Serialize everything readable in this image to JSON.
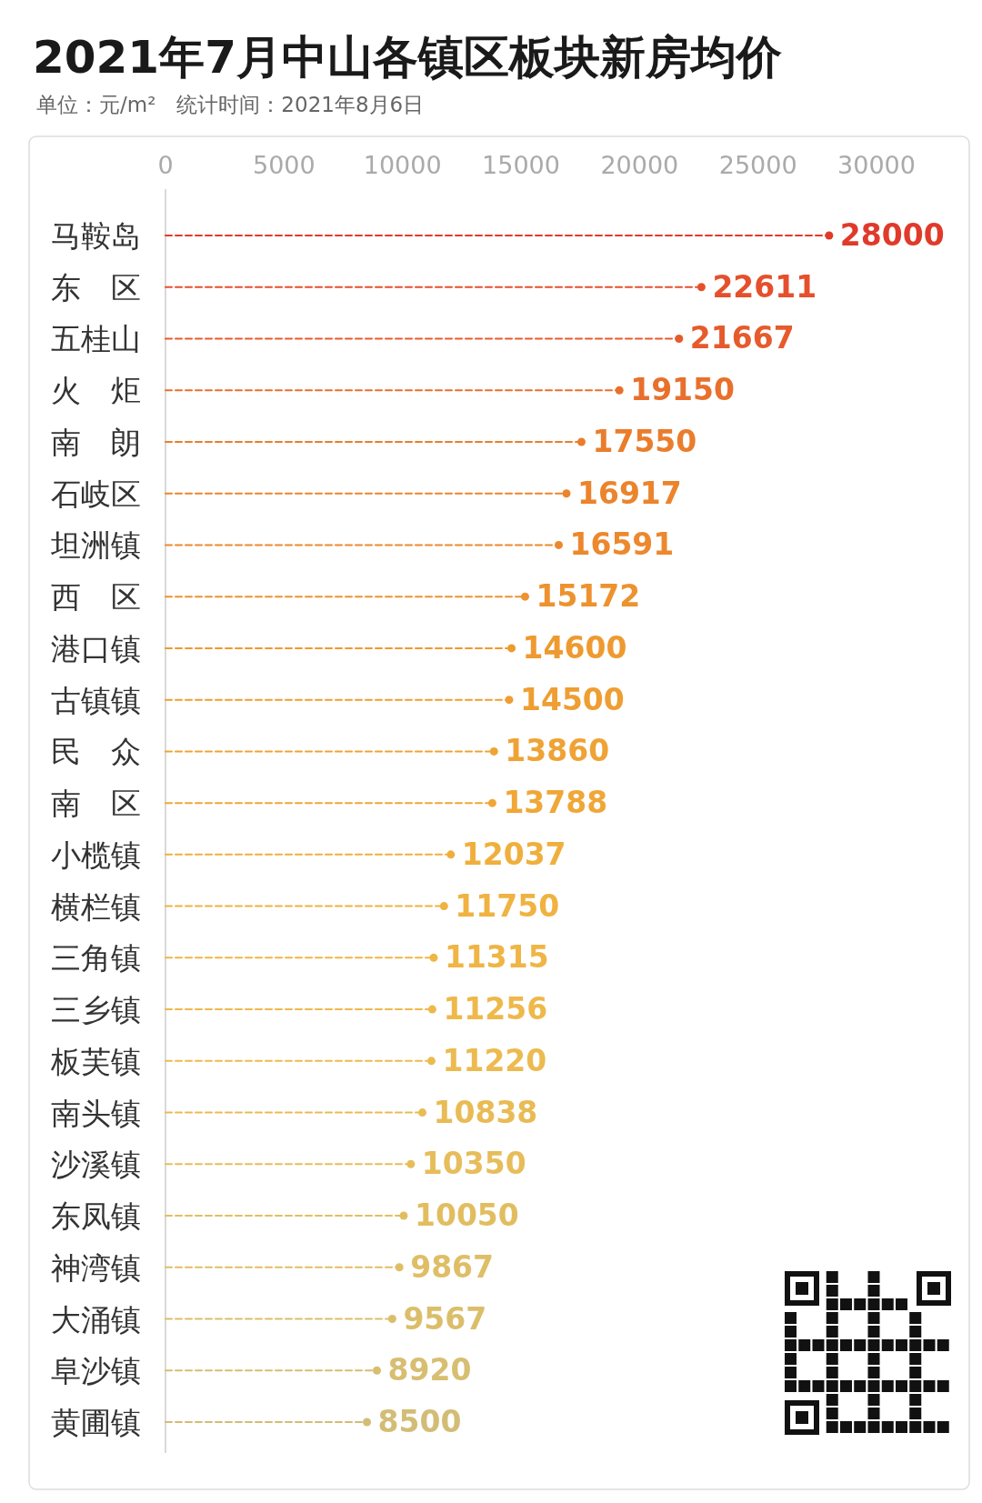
{
  "chart_data": {
    "type": "lollipop",
    "title": "2021年7月中山各镇区板块新房均价",
    "subtitle": "单位：元/m²　统计时间：2021年8月6日",
    "orientation": "horizontal",
    "categories": [
      "马鞍岛",
      "东　区",
      "五桂山",
      "火　炬",
      "南　朗",
      "石岐区",
      "坦洲镇",
      "西　区",
      "港口镇",
      "古镇镇",
      "民　众",
      "南　区",
      "小榄镇",
      "横栏镇",
      "三角镇",
      "三乡镇",
      "板芙镇",
      "南头镇",
      "沙溪镇",
      "东凤镇",
      "神湾镇",
      "大涌镇",
      "阜沙镇",
      "黄圃镇"
    ],
    "values": [
      28000,
      22611,
      21667,
      19150,
      17550,
      16917,
      16591,
      15172,
      14600,
      14500,
      13860,
      13788,
      12037,
      11750,
      11315,
      11256,
      11220,
      10838,
      10350,
      10050,
      9867,
      9567,
      8920,
      8500
    ],
    "colors": [
      "#e03a2a",
      "#e5502c",
      "#e65a2c",
      "#e8702c",
      "#ea7d2c",
      "#eb842c",
      "#ec882d",
      "#ed922f",
      "#ee9a30",
      "#ee9e32",
      "#efa335",
      "#f0a737",
      "#f0af3c",
      "#f0b240",
      "#efb545",
      "#eeb84a",
      "#ecba4f",
      "#e9bb54",
      "#e6bd5a",
      "#e2bd60",
      "#dfbe66",
      "#dbbe6b",
      "#d7be71",
      "#d3bd76"
    ],
    "xlim": [
      0,
      30000
    ],
    "xticks": [
      0,
      5000,
      10000,
      15000,
      20000,
      25000,
      30000
    ],
    "data_labels": true,
    "marker": "circle",
    "line_style": "dashed",
    "grid": false
  }
}
